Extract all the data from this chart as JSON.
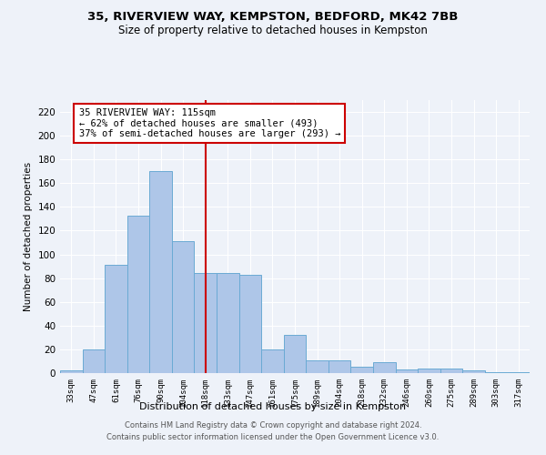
{
  "title_line1": "35, RIVERVIEW WAY, KEMPSTON, BEDFORD, MK42 7BB",
  "title_line2": "Size of property relative to detached houses in Kempston",
  "xlabel": "Distribution of detached houses by size in Kempston",
  "ylabel": "Number of detached properties",
  "bar_values": [
    2,
    20,
    91,
    133,
    170,
    111,
    84,
    84,
    83,
    20,
    32,
    11,
    11,
    5,
    9,
    3,
    4,
    4,
    2,
    1,
    1
  ],
  "categories": [
    "33sqm",
    "47sqm",
    "61sqm",
    "76sqm",
    "90sqm",
    "104sqm",
    "118sqm",
    "133sqm",
    "147sqm",
    "161sqm",
    "175sqm",
    "189sqm",
    "204sqm",
    "218sqm",
    "232sqm",
    "246sqm",
    "260sqm",
    "275sqm",
    "289sqm",
    "303sqm",
    "317sqm"
  ],
  "bar_color": "#aec6e8",
  "bar_edge_color": "#6aaad4",
  "vline_x_index": 6,
  "annotation_title": "35 RIVERVIEW WAY: 115sqm",
  "annotation_line1": "← 62% of detached houses are smaller (493)",
  "annotation_line2": "37% of semi-detached houses are larger (293) →",
  "annotation_box_facecolor": "#ffffff",
  "annotation_box_edgecolor": "#cc0000",
  "vline_color": "#cc0000",
  "footer_line1": "Contains HM Land Registry data © Crown copyright and database right 2024.",
  "footer_line2": "Contains public sector information licensed under the Open Government Licence v3.0.",
  "background_color": "#eef2f9",
  "grid_color": "#ffffff",
  "ylim": [
    0,
    230
  ],
  "yticks": [
    0,
    20,
    40,
    60,
    80,
    100,
    120,
    140,
    160,
    180,
    200,
    220
  ]
}
